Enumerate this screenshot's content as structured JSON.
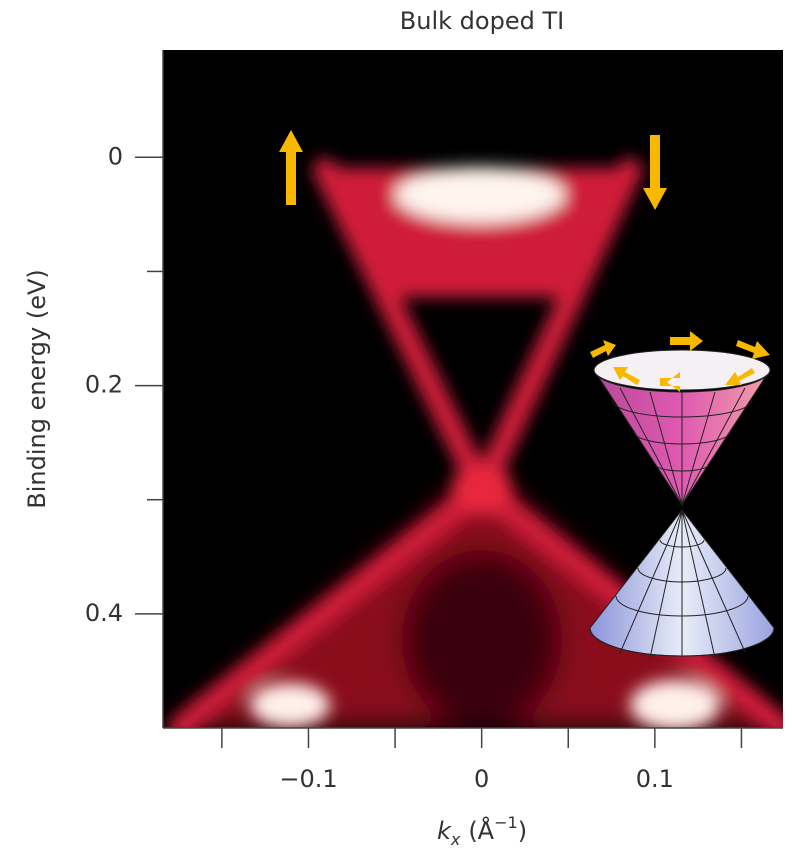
{
  "chart_data": {
    "type": "image",
    "title": "Bulk doped TI",
    "ylabel": "Binding energy (eV)",
    "xlabel_parts": [
      "k",
      "x",
      "(Å",
      "−1",
      ")"
    ],
    "xlim": [
      -0.184,
      0.174
    ],
    "ylim": [
      -0.094,
      0.5
    ],
    "y_inverted": true,
    "xticks": [
      {
        "value": -0.1,
        "label": "−0.1"
      },
      0,
      0.1
    ],
    "xminor": [
      -0.15,
      -0.05,
      0.05,
      0.15
    ],
    "yticks": [
      0,
      0.2,
      0.4
    ],
    "yminor": [
      0.1,
      0.3
    ]
  }
}
